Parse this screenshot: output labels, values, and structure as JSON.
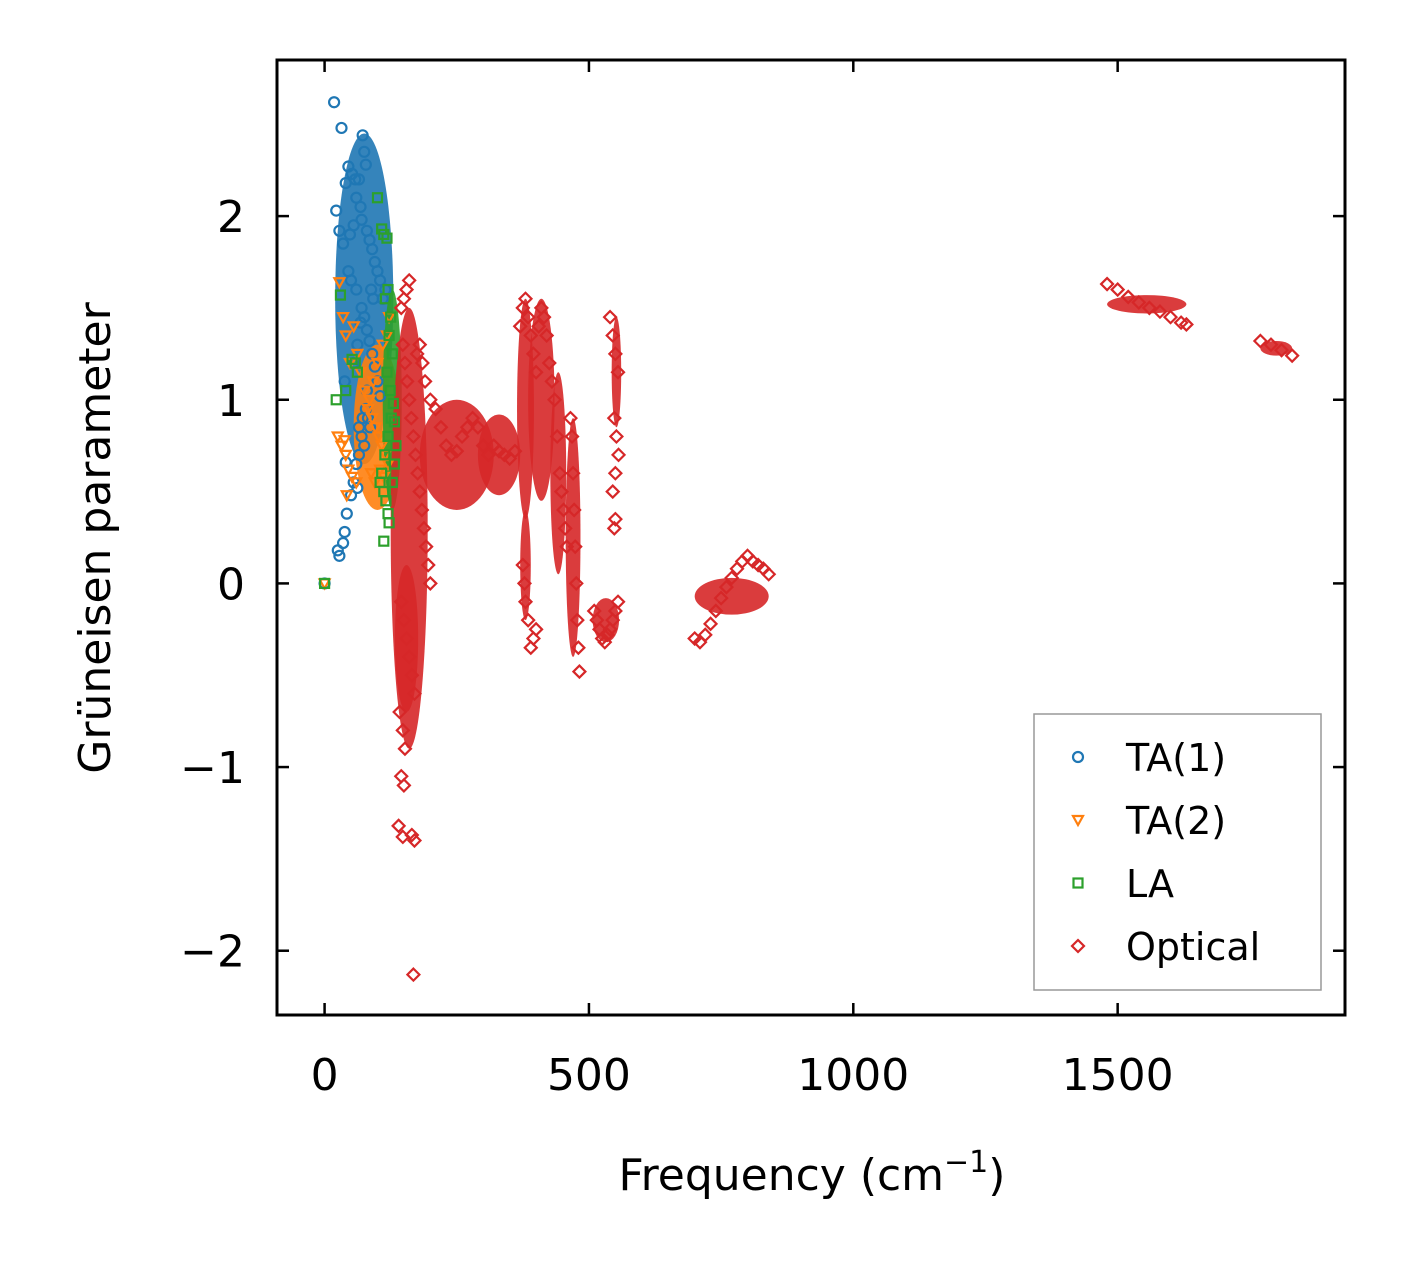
{
  "chart_data": {
    "type": "scatter",
    "title": "",
    "xlabel": "Frequency (cm",
    "xlabel_sup": "−1",
    "xlabel_close": ")",
    "ylabel": "Grüneisen parameter",
    "xlim": [
      -90,
      1930
    ],
    "ylim": [
      -2.35,
      2.85
    ],
    "xticks": [
      0,
      500,
      1000,
      1500
    ],
    "xtick_labels": [
      "0",
      "500",
      "1000",
      "1500"
    ],
    "yticks": [
      -2,
      -1,
      0,
      1,
      2
    ],
    "ytick_labels": [
      "−2",
      "−1",
      "0",
      "1",
      "2"
    ],
    "legend_position": "bottom-right",
    "series": [
      {
        "name": "TA(1)",
        "marker": "circle",
        "color": "#1f77b4",
        "points": [
          [
            0,
            0
          ],
          [
            18,
            2.62
          ],
          [
            32,
            2.48
          ],
          [
            22,
            2.03
          ],
          [
            40,
            2.18
          ],
          [
            45,
            2.27
          ],
          [
            52,
            2.23
          ],
          [
            58,
            2.2
          ],
          [
            65,
            2.2
          ],
          [
            72,
            2.44
          ],
          [
            75,
            2.35
          ],
          [
            78,
            2.28
          ],
          [
            60,
            2.1
          ],
          [
            68,
            2.05
          ],
          [
            70,
            1.98
          ],
          [
            80,
            1.92
          ],
          [
            85,
            1.87
          ],
          [
            90,
            1.82
          ],
          [
            95,
            1.75
          ],
          [
            100,
            1.7
          ],
          [
            105,
            1.65
          ],
          [
            88,
            1.6
          ],
          [
            92,
            1.55
          ],
          [
            55,
            1.95
          ],
          [
            48,
            1.9
          ],
          [
            35,
            1.85
          ],
          [
            28,
            1.92
          ],
          [
            45,
            1.7
          ],
          [
            50,
            1.65
          ],
          [
            60,
            1.6
          ],
          [
            70,
            1.5
          ],
          [
            75,
            1.45
          ],
          [
            80,
            1.38
          ],
          [
            85,
            1.32
          ],
          [
            90,
            1.25
          ],
          [
            95,
            1.18
          ],
          [
            100,
            1.1
          ],
          [
            105,
            1.02
          ],
          [
            78,
            0.95
          ],
          [
            82,
            0.9
          ],
          [
            86,
            0.85
          ],
          [
            70,
            0.8
          ],
          [
            75,
            0.75
          ],
          [
            65,
            0.7
          ],
          [
            60,
            0.65
          ],
          [
            55,
            0.55
          ],
          [
            50,
            0.48
          ],
          [
            42,
            0.38
          ],
          [
            38,
            0.28
          ],
          [
            35,
            0.22
          ],
          [
            25,
            0.18
          ],
          [
            28,
            0.15
          ],
          [
            40,
            0.66
          ],
          [
            38,
            1.1
          ],
          [
            55,
            1.2
          ],
          [
            62,
            1.3
          ],
          [
            68,
            1.42
          ],
          [
            110,
            1.55
          ],
          [
            115,
            1.6
          ],
          [
            65,
            0.85
          ],
          [
            72,
            0.9
          ],
          [
            80,
            1.05
          ],
          [
            62,
            0.52
          ]
        ]
      },
      {
        "name": "TA(2)",
        "marker": "triangle-down",
        "color": "#ff7f0e",
        "points": [
          [
            0,
            0
          ],
          [
            28,
            1.64
          ],
          [
            35,
            1.45
          ],
          [
            40,
            1.35
          ],
          [
            48,
            1.2
          ],
          [
            55,
            1.4
          ],
          [
            62,
            1.25
          ],
          [
            68,
            1.15
          ],
          [
            75,
            1.05
          ],
          [
            82,
            0.95
          ],
          [
            90,
            0.9
          ],
          [
            96,
            0.85
          ],
          [
            102,
            0.8
          ],
          [
            108,
            0.75
          ],
          [
            115,
            0.7
          ],
          [
            118,
            1.35
          ],
          [
            122,
            1.45
          ],
          [
            110,
            1.3
          ],
          [
            100,
            1.2
          ],
          [
            25,
            0.8
          ],
          [
            32,
            0.75
          ],
          [
            40,
            0.7
          ],
          [
            45,
            0.62
          ],
          [
            52,
            0.58
          ],
          [
            60,
            0.55
          ],
          [
            42,
            0.48
          ],
          [
            38,
            0.78
          ],
          [
            88,
            0.6
          ],
          [
            95,
            0.55
          ],
          [
            105,
            0.62
          ],
          [
            112,
            0.58
          ],
          [
            120,
            0.65
          ],
          [
            85,
            1.0
          ],
          [
            92,
            1.1
          ]
        ]
      },
      {
        "name": "LA",
        "marker": "square",
        "color": "#2ca02c",
        "points": [
          [
            0,
            0
          ],
          [
            30,
            1.57
          ],
          [
            22,
            1.0
          ],
          [
            40,
            1.05
          ],
          [
            52,
            1.22
          ],
          [
            58,
            1.2
          ],
          [
            62,
            1.15
          ],
          [
            100,
            2.1
          ],
          [
            108,
            1.93
          ],
          [
            118,
            1.88
          ],
          [
            112,
            1.9
          ],
          [
            120,
            1.6
          ],
          [
            115,
            1.55
          ],
          [
            125,
            1.45
          ],
          [
            122,
            1.35
          ],
          [
            128,
            1.25
          ],
          [
            118,
            1.15
          ],
          [
            124,
            1.05
          ],
          [
            130,
            0.98
          ],
          [
            126,
            0.9
          ],
          [
            120,
            0.8
          ],
          [
            114,
            0.7
          ],
          [
            108,
            0.6
          ],
          [
            105,
            0.55
          ],
          [
            112,
            0.5
          ],
          [
            116,
            0.45
          ],
          [
            120,
            0.38
          ],
          [
            122,
            0.33
          ],
          [
            112,
            0.23
          ],
          [
            132,
            0.88
          ],
          [
            135,
            0.75
          ],
          [
            132,
            0.65
          ],
          [
            128,
            0.55
          ]
        ]
      },
      {
        "name": "Optical",
        "marker": "diamond",
        "color": "#d62728",
        "points": [
          [
            145,
            1.5
          ],
          [
            150,
            1.55
          ],
          [
            155,
            1.6
          ],
          [
            160,
            1.65
          ],
          [
            148,
            1.3
          ],
          [
            152,
            1.2
          ],
          [
            156,
            1.1
          ],
          [
            160,
            1.0
          ],
          [
            164,
            0.9
          ],
          [
            168,
            0.8
          ],
          [
            172,
            0.7
          ],
          [
            176,
            0.6
          ],
          [
            180,
            0.5
          ],
          [
            184,
            0.4
          ],
          [
            188,
            0.3
          ],
          [
            192,
            0.2
          ],
          [
            196,
            0.1
          ],
          [
            200,
            0.0
          ],
          [
            145,
            -0.1
          ],
          [
            150,
            -0.2
          ],
          [
            155,
            -0.3
          ],
          [
            160,
            -0.4
          ],
          [
            165,
            -0.5
          ],
          [
            170,
            -0.6
          ],
          [
            142,
            -0.7
          ],
          [
            148,
            -0.8
          ],
          [
            152,
            -0.9
          ],
          [
            145,
            -1.05
          ],
          [
            150,
            -1.1
          ],
          [
            140,
            -1.32
          ],
          [
            148,
            -1.38
          ],
          [
            165,
            -1.37
          ],
          [
            170,
            -1.4
          ],
          [
            168,
            -2.13
          ],
          [
            175,
            1.25
          ],
          [
            180,
            1.3
          ],
          [
            185,
            1.2
          ],
          [
            190,
            1.1
          ],
          [
            200,
            1.0
          ],
          [
            210,
            0.95
          ],
          [
            220,
            0.85
          ],
          [
            230,
            0.75
          ],
          [
            240,
            0.7
          ],
          [
            250,
            0.72
          ],
          [
            260,
            0.8
          ],
          [
            270,
            0.85
          ],
          [
            280,
            0.9
          ],
          [
            290,
            0.85
          ],
          [
            300,
            0.75
          ],
          [
            310,
            0.7
          ],
          [
            320,
            0.75
          ],
          [
            330,
            0.72
          ],
          [
            340,
            0.7
          ],
          [
            350,
            0.68
          ],
          [
            360,
            0.72
          ],
          [
            370,
            1.4
          ],
          [
            375,
            1.5
          ],
          [
            380,
            1.55
          ],
          [
            385,
            1.45
          ],
          [
            390,
            1.35
          ],
          [
            395,
            1.25
          ],
          [
            400,
            1.15
          ],
          [
            405,
            1.4
          ],
          [
            410,
            1.5
          ],
          [
            415,
            1.45
          ],
          [
            420,
            1.35
          ],
          [
            425,
            1.2
          ],
          [
            430,
            1.1
          ],
          [
            435,
            1.0
          ],
          [
            440,
            0.8
          ],
          [
            445,
            0.6
          ],
          [
            448,
            0.5
          ],
          [
            452,
            0.4
          ],
          [
            455,
            0.3
          ],
          [
            458,
            0.2
          ],
          [
            375,
            0.1
          ],
          [
            378,
            0.0
          ],
          [
            380,
            -0.1
          ],
          [
            385,
            -0.2
          ],
          [
            390,
            -0.35
          ],
          [
            395,
            -0.3
          ],
          [
            400,
            -0.25
          ],
          [
            465,
            0.9
          ],
          [
            468,
            0.8
          ],
          [
            470,
            0.6
          ],
          [
            472,
            0.4
          ],
          [
            474,
            0.2
          ],
          [
            476,
            0.0
          ],
          [
            478,
            -0.2
          ],
          [
            480,
            -0.35
          ],
          [
            482,
            -0.48
          ],
          [
            540,
            1.45
          ],
          [
            545,
            1.35
          ],
          [
            550,
            1.25
          ],
          [
            555,
            1.15
          ],
          [
            548,
            0.9
          ],
          [
            552,
            0.8
          ],
          [
            556,
            0.7
          ],
          [
            550,
            0.6
          ],
          [
            545,
            0.5
          ],
          [
            550,
            0.35
          ],
          [
            548,
            0.3
          ],
          [
            510,
            -0.15
          ],
          [
            515,
            -0.2
          ],
          [
            520,
            -0.25
          ],
          [
            525,
            -0.3
          ],
          [
            530,
            -0.32
          ],
          [
            535,
            -0.28
          ],
          [
            540,
            -0.25
          ],
          [
            545,
            -0.2
          ],
          [
            550,
            -0.15
          ],
          [
            555,
            -0.1
          ],
          [
            700,
            -0.3
          ],
          [
            710,
            -0.32
          ],
          [
            720,
            -0.28
          ],
          [
            730,
            -0.22
          ],
          [
            740,
            -0.15
          ],
          [
            750,
            -0.08
          ],
          [
            760,
            -0.02
          ],
          [
            770,
            0.03
          ],
          [
            780,
            0.08
          ],
          [
            790,
            0.12
          ],
          [
            800,
            0.15
          ],
          [
            810,
            0.12
          ],
          [
            820,
            0.1
          ],
          [
            830,
            0.08
          ],
          [
            840,
            0.05
          ],
          [
            1480,
            1.63
          ],
          [
            1500,
            1.6
          ],
          [
            1520,
            1.56
          ],
          [
            1540,
            1.53
          ],
          [
            1560,
            1.5
          ],
          [
            1580,
            1.48
          ],
          [
            1600,
            1.45
          ],
          [
            1620,
            1.42
          ],
          [
            1630,
            1.41
          ],
          [
            1770,
            1.32
          ],
          [
            1790,
            1.3
          ],
          [
            1810,
            1.27
          ],
          [
            1830,
            1.24
          ]
        ]
      }
    ],
    "clusters": [
      {
        "name": "ta1-cluster",
        "series": "TA(1)",
        "x": 75,
        "y": 1.55,
        "xh": 55,
        "yh": 0.9
      },
      {
        "name": "ta2-cluster",
        "series": "TA(2)",
        "x": 100,
        "y": 0.85,
        "xh": 45,
        "yh": 0.45
      },
      {
        "name": "la-cluster",
        "series": "LA",
        "x": 128,
        "y": 1.0,
        "xh": 18,
        "yh": 0.6
      },
      {
        "name": "optical-low-freq-band",
        "series": "Optical",
        "x": 160,
        "y": 0.3,
        "xh": 35,
        "yh": 1.2
      },
      {
        "name": "optical-low-freq-tail",
        "series": "Optical",
        "x": 155,
        "y": -0.3,
        "xh": 22,
        "yh": 0.4
      },
      {
        "name": "optical-200-300",
        "series": "Optical",
        "x": 250,
        "y": 0.7,
        "xh": 70,
        "yh": 0.3
      },
      {
        "name": "optical-300-370",
        "series": "Optical",
        "x": 330,
        "y": 0.7,
        "xh": 40,
        "yh": 0.22
      },
      {
        "name": "optical-375",
        "series": "Optical",
        "x": 380,
        "y": 0.95,
        "xh": 16,
        "yh": 0.6
      },
      {
        "name": "optical-375-negative",
        "series": "Optical",
        "x": 380,
        "y": 0.1,
        "xh": 10,
        "yh": 0.3
      },
      {
        "name": "optical-410",
        "series": "Optical",
        "x": 410,
        "y": 1.0,
        "xh": 25,
        "yh": 0.55
      },
      {
        "name": "optical-440",
        "series": "Optical",
        "x": 442,
        "y": 0.6,
        "xh": 15,
        "yh": 0.55
      },
      {
        "name": "optical-470",
        "series": "Optical",
        "x": 470,
        "y": 0.25,
        "xh": 14,
        "yh": 0.65
      },
      {
        "name": "optical-550",
        "series": "Optical",
        "x": 552,
        "y": 1.15,
        "xh": 9,
        "yh": 0.3
      },
      {
        "name": "optical-530-negative",
        "series": "Optical",
        "x": 532,
        "y": -0.2,
        "xh": 25,
        "yh": 0.12
      },
      {
        "name": "optical-700-840-band",
        "series": "Optical",
        "x": 770,
        "y": -0.07,
        "xh": 70,
        "yh": 0.1
      },
      {
        "name": "optical-1480-1630-band",
        "series": "Optical",
        "x": 1555,
        "y": 1.52,
        "xh": 75,
        "yh": 0.05
      },
      {
        "name": "optical-1770-1830-band",
        "series": "Optical",
        "x": 1800,
        "y": 1.28,
        "xh": 30,
        "yh": 0.04
      }
    ]
  }
}
